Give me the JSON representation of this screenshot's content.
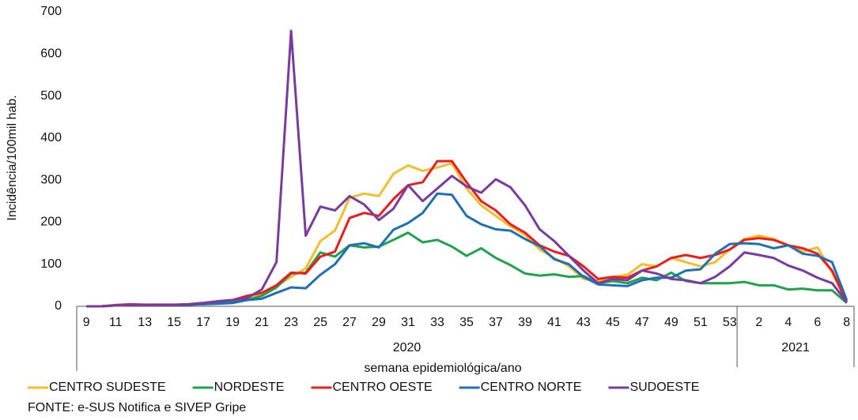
{
  "chart_data": {
    "type": "line",
    "y_label": "Incidência/100mil hab.",
    "x_label": "semana epidemiológica/ano",
    "source": "FONTE: e-SUS Notifica e SIVEP Gripe",
    "categories": [
      "9",
      null,
      "11",
      null,
      "13",
      null,
      "15",
      null,
      "17",
      null,
      "19",
      null,
      "21",
      null,
      "23",
      null,
      "25",
      null,
      "27",
      null,
      "29",
      null,
      "31",
      null,
      "33",
      null,
      "35",
      null,
      "37",
      null,
      "39",
      null,
      "41",
      null,
      "43",
      null,
      "45",
      null,
      "47",
      null,
      "49",
      null,
      "51",
      null,
      "53",
      null,
      "2",
      null,
      "4",
      null,
      "6",
      null,
      "8"
    ],
    "groups": [
      "2020",
      "2021"
    ],
    "ylim": [
      0,
      700
    ],
    "yticks": [
      0,
      100,
      200,
      300,
      400,
      500,
      600,
      700
    ],
    "legend": "bottom",
    "series": [
      {
        "name": "CENTRO SUDESTE",
        "color": "#f5bd2a",
        "values": [
          0,
          0,
          2,
          3,
          3,
          3,
          3,
          5,
          6,
          10,
          12,
          18,
          30,
          48,
          70,
          90,
          155,
          180,
          258,
          268,
          262,
          315,
          335,
          322,
          330,
          340,
          280,
          240,
          215,
          190,
          170,
          135,
          115,
          95,
          65,
          60,
          70,
          75,
          100,
          95,
          115,
          105,
          95,
          105,
          135,
          160,
          168,
          160,
          145,
          130,
          140,
          80,
          10
        ]
      },
      {
        "name": "NORDESTE",
        "color": "#1fa34a",
        "values": [
          0,
          0,
          2,
          3,
          3,
          3,
          3,
          4,
          5,
          8,
          10,
          15,
          25,
          45,
          78,
          80,
          128,
          118,
          145,
          140,
          142,
          158,
          175,
          152,
          158,
          142,
          120,
          138,
          115,
          98,
          78,
          73,
          76,
          70,
          72,
          55,
          60,
          55,
          68,
          62,
          80,
          60,
          55,
          55,
          55,
          58,
          50,
          50,
          40,
          42,
          38,
          38,
          8
        ]
      },
      {
        "name": "CENTRO OESTE",
        "color": "#ee1c1c",
        "values": [
          0,
          0,
          3,
          5,
          4,
          4,
          4,
          5,
          8,
          12,
          15,
          25,
          32,
          50,
          80,
          78,
          118,
          130,
          210,
          222,
          215,
          255,
          288,
          295,
          345,
          345,
          295,
          250,
          228,
          195,
          175,
          145,
          130,
          120,
          95,
          65,
          70,
          68,
          85,
          95,
          115,
          122,
          115,
          122,
          135,
          158,
          162,
          158,
          145,
          138,
          125,
          85,
          10
        ]
      },
      {
        "name": "CENTRO NORTE",
        "color": "#1f6fb5",
        "values": [
          0,
          0,
          2,
          3,
          3,
          3,
          3,
          4,
          5,
          6,
          8,
          15,
          18,
          32,
          45,
          43,
          75,
          100,
          145,
          150,
          140,
          182,
          198,
          222,
          268,
          265,
          215,
          195,
          183,
          180,
          160,
          143,
          112,
          100,
          70,
          52,
          50,
          48,
          62,
          68,
          68,
          85,
          88,
          125,
          148,
          150,
          148,
          138,
          145,
          125,
          120,
          105,
          15
        ]
      },
      {
        "name": "SUDOESTE",
        "color": "#7b3a9e",
        "values": [
          0,
          0,
          2,
          3,
          3,
          3,
          3,
          5,
          8,
          12,
          15,
          20,
          40,
          105,
          655,
          168,
          237,
          228,
          262,
          242,
          205,
          232,
          288,
          250,
          280,
          310,
          285,
          270,
          302,
          283,
          240,
          183,
          155,
          120,
          85,
          55,
          65,
          62,
          85,
          78,
          65,
          62,
          55,
          70,
          95,
          128,
          122,
          115,
          97,
          85,
          68,
          55,
          10
        ]
      }
    ]
  }
}
